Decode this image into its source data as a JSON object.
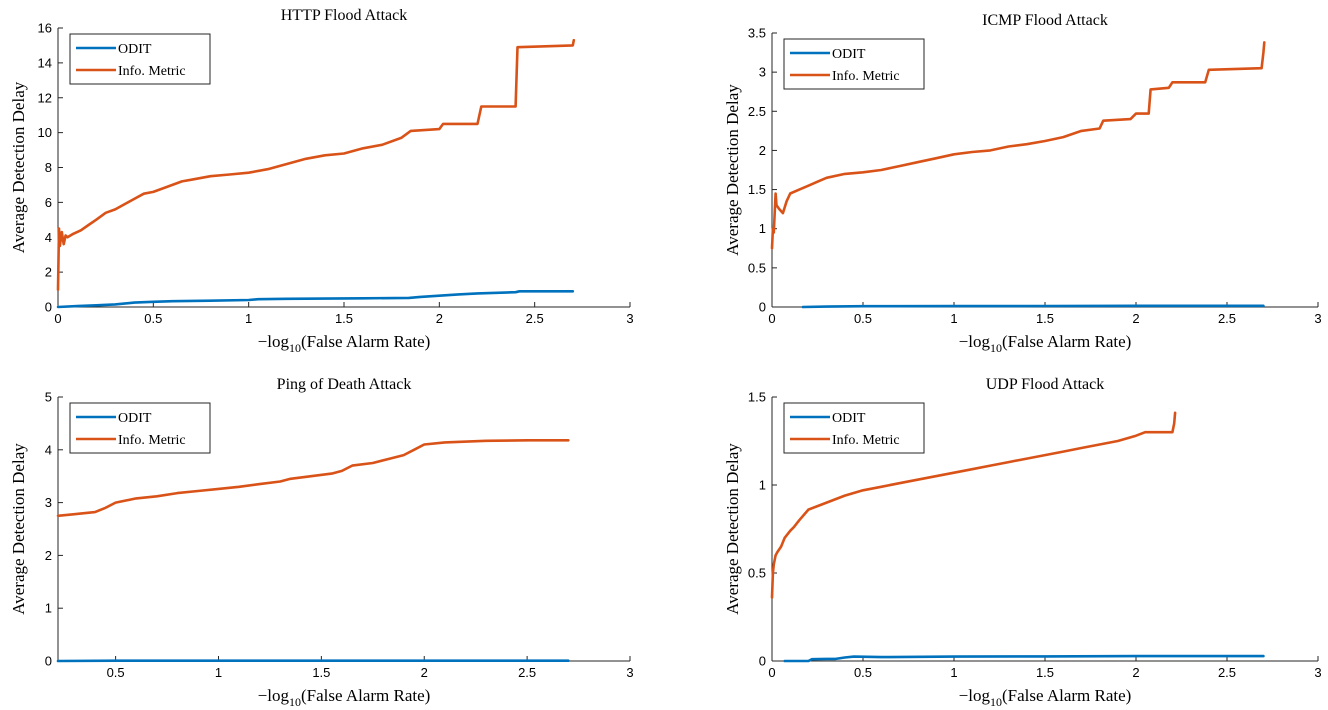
{
  "figure": {
    "layout": "2x2 grid of line charts"
  },
  "colors": {
    "odit": "#0072BD",
    "info": "#D95319",
    "axes": "#262626"
  },
  "chart_data": [
    {
      "type": "line",
      "title": "HTTP Flood Attack",
      "xlabel_prefix": "−log",
      "xlabel_sub": "10",
      "xlabel_suffix": "(False Alarm Rate)",
      "ylabel": "Average Detection Delay",
      "xlim": [
        0,
        3
      ],
      "ylim": [
        0,
        16
      ],
      "xticks": [
        0,
        0.5,
        1,
        1.5,
        2,
        2.5,
        3
      ],
      "xtick_labels": [
        "0",
        "0.5",
        "1",
        "1.5",
        "2",
        "2.5",
        "3"
      ],
      "yticks": [
        0,
        2,
        4,
        6,
        8,
        10,
        12,
        14,
        16
      ],
      "ytick_labels": [
        "0",
        "2",
        "4",
        "6",
        "8",
        "10",
        "12",
        "14",
        "16"
      ],
      "grid": false,
      "legend_position": "top-left",
      "series": [
        {
          "name": "ODIT",
          "color": "#0072BD",
          "x": [
            0,
            0.1,
            0.2,
            0.3,
            0.4,
            0.5,
            0.6,
            0.8,
            1.0,
            1.05,
            1.2,
            1.4,
            1.6,
            1.84,
            1.9,
            2.0,
            2.1,
            2.2,
            2.4,
            2.42,
            2.7
          ],
          "y": [
            0,
            0.05,
            0.1,
            0.15,
            0.25,
            0.3,
            0.33,
            0.36,
            0.4,
            0.45,
            0.47,
            0.48,
            0.5,
            0.52,
            0.58,
            0.65,
            0.72,
            0.78,
            0.85,
            0.9,
            0.9
          ]
        },
        {
          "name": "Info. Metric",
          "color": "#D95319",
          "x": [
            0,
            0.005,
            0.01,
            0.02,
            0.03,
            0.04,
            0.05,
            0.08,
            0.12,
            0.16,
            0.2,
            0.25,
            0.3,
            0.35,
            0.4,
            0.45,
            0.5,
            0.55,
            0.6,
            0.65,
            0.7,
            0.8,
            0.9,
            1.0,
            1.1,
            1.2,
            1.3,
            1.4,
            1.5,
            1.6,
            1.7,
            1.8,
            1.85,
            2.0,
            2.02,
            2.2,
            2.22,
            2.4,
            2.41,
            2.7,
            2.705
          ],
          "y": [
            1.0,
            4.5,
            3.5,
            4.3,
            3.6,
            4.1,
            4.0,
            4.2,
            4.4,
            4.7,
            5.0,
            5.4,
            5.6,
            5.9,
            6.2,
            6.5,
            6.6,
            6.8,
            7.0,
            7.2,
            7.3,
            7.5,
            7.6,
            7.7,
            7.9,
            8.2,
            8.5,
            8.7,
            8.8,
            9.1,
            9.3,
            9.7,
            10.1,
            10.2,
            10.5,
            10.5,
            11.5,
            11.5,
            14.9,
            15.0,
            15.3
          ]
        }
      ]
    },
    {
      "type": "line",
      "title": "ICMP Flood Attack",
      "xlabel_prefix": "−log",
      "xlabel_sub": "10",
      "xlabel_suffix": "(False Alarm Rate)",
      "ylabel": "Average Detection Delay",
      "xlim": [
        0,
        3
      ],
      "ylim": [
        0,
        3.5
      ],
      "xticks": [
        0,
        0.5,
        1,
        1.5,
        2,
        2.5,
        3
      ],
      "xtick_labels": [
        "0",
        "0.5",
        "1",
        "1.5",
        "2",
        "2.5",
        "3"
      ],
      "yticks": [
        0,
        0.5,
        1,
        1.5,
        2,
        2.5,
        3,
        3.5
      ],
      "ytick_labels": [
        "0",
        "0.5",
        "1",
        "1.5",
        "2",
        "2.5",
        "3",
        "3.5"
      ],
      "grid": false,
      "legend_position": "top-left",
      "series": [
        {
          "name": "ODIT",
          "color": "#0072BD",
          "x": [
            0.17,
            0.3,
            0.5,
            1.0,
            1.5,
            2.0,
            2.7
          ],
          "y": [
            0.0,
            0.005,
            0.01,
            0.012,
            0.013,
            0.015,
            0.015
          ]
        },
        {
          "name": "Info. Metric",
          "color": "#D95319",
          "x": [
            0,
            0.005,
            0.01,
            0.02,
            0.025,
            0.04,
            0.06,
            0.08,
            0.1,
            0.15,
            0.2,
            0.25,
            0.3,
            0.4,
            0.5,
            0.6,
            0.7,
            0.8,
            0.9,
            1.0,
            1.1,
            1.2,
            1.3,
            1.4,
            1.5,
            1.6,
            1.7,
            1.8,
            1.82,
            1.97,
            2.0,
            2.07,
            2.08,
            2.18,
            2.2,
            2.38,
            2.4,
            2.69,
            2.7,
            2.705
          ],
          "y": [
            0.75,
            1.0,
            0.95,
            1.45,
            1.3,
            1.25,
            1.2,
            1.35,
            1.45,
            1.5,
            1.55,
            1.6,
            1.65,
            1.7,
            1.72,
            1.75,
            1.8,
            1.85,
            1.9,
            1.95,
            1.98,
            2.0,
            2.05,
            2.08,
            2.12,
            2.17,
            2.25,
            2.28,
            2.38,
            2.4,
            2.47,
            2.47,
            2.78,
            2.8,
            2.87,
            2.87,
            3.03,
            3.05,
            3.25,
            3.38
          ]
        }
      ]
    },
    {
      "type": "line",
      "title": "Ping of Death Attack",
      "xlabel_prefix": "−log",
      "xlabel_sub": "10",
      "xlabel_suffix": "(False Alarm Rate)",
      "ylabel": "Average Detection Delay",
      "xlim": [
        0.22,
        3
      ],
      "ylim": [
        0,
        5
      ],
      "xticks": [
        0.5,
        1,
        1.5,
        2,
        2.5,
        3
      ],
      "xtick_labels": [
        "0.5",
        "1",
        "1.5",
        "2",
        "2.5",
        "3"
      ],
      "yticks": [
        0,
        1,
        2,
        3,
        4,
        5
      ],
      "ytick_labels": [
        "0",
        "1",
        "2",
        "3",
        "4",
        "5"
      ],
      "grid": false,
      "legend_position": "top-left",
      "series": [
        {
          "name": "ODIT",
          "color": "#0072BD",
          "x": [
            0.22,
            0.5,
            1.0,
            1.5,
            2.0,
            2.7
          ],
          "y": [
            0.0,
            0.005,
            0.005,
            0.005,
            0.005,
            0.005
          ]
        },
        {
          "name": "Info. Metric",
          "color": "#D95319",
          "x": [
            0.22,
            0.3,
            0.4,
            0.45,
            0.5,
            0.6,
            0.7,
            0.8,
            0.9,
            1.0,
            1.1,
            1.2,
            1.3,
            1.35,
            1.45,
            1.55,
            1.6,
            1.65,
            1.75,
            1.85,
            1.9,
            1.95,
            2.0,
            2.1,
            2.3,
            2.5,
            2.7
          ],
          "y": [
            2.75,
            2.78,
            2.82,
            2.9,
            3.0,
            3.08,
            3.12,
            3.18,
            3.22,
            3.26,
            3.3,
            3.35,
            3.4,
            3.45,
            3.5,
            3.55,
            3.6,
            3.7,
            3.75,
            3.85,
            3.9,
            4.0,
            4.1,
            4.14,
            4.17,
            4.18,
            4.18
          ]
        }
      ]
    },
    {
      "type": "line",
      "title": "UDP Flood Attack",
      "xlabel_prefix": "−log",
      "xlabel_sub": "10",
      "xlabel_suffix": "(False Alarm Rate)",
      "ylabel": "Average Detection Delay",
      "xlim": [
        0,
        3
      ],
      "ylim": [
        0,
        1.5
      ],
      "xticks": [
        0,
        0.5,
        1,
        1.5,
        2,
        2.5,
        3
      ],
      "xtick_labels": [
        "0",
        "0.5",
        "1",
        "1.5",
        "2",
        "2.5",
        "3"
      ],
      "yticks": [
        0,
        0.5,
        1,
        1.5
      ],
      "ytick_labels": [
        "0",
        "0.5",
        "1",
        "1.5"
      ],
      "grid": false,
      "legend_position": "top-left",
      "series": [
        {
          "name": "ODIT",
          "color": "#0072BD",
          "x": [
            0.07,
            0.2,
            0.22,
            0.3,
            0.35,
            0.4,
            0.45,
            0.6,
            1.0,
            1.5,
            2.0,
            2.7
          ],
          "y": [
            0.0,
            0.0,
            0.01,
            0.012,
            0.012,
            0.02,
            0.025,
            0.022,
            0.025,
            0.026,
            0.028,
            0.028
          ]
        },
        {
          "name": "Info. Metric",
          "color": "#D95319",
          "x": [
            0,
            0.005,
            0.01,
            0.02,
            0.03,
            0.05,
            0.07,
            0.1,
            0.12,
            0.15,
            0.2,
            0.25,
            0.3,
            0.35,
            0.4,
            0.5,
            0.6,
            0.7,
            0.8,
            0.9,
            1.0,
            1.1,
            1.2,
            1.3,
            1.4,
            1.5,
            1.6,
            1.7,
            1.8,
            1.9,
            2.0,
            2.05,
            2.2,
            2.21,
            2.215
          ],
          "y": [
            0.36,
            0.5,
            0.55,
            0.6,
            0.62,
            0.65,
            0.7,
            0.74,
            0.76,
            0.8,
            0.86,
            0.88,
            0.9,
            0.92,
            0.94,
            0.97,
            0.99,
            1.01,
            1.03,
            1.05,
            1.07,
            1.09,
            1.11,
            1.13,
            1.15,
            1.17,
            1.19,
            1.21,
            1.23,
            1.25,
            1.28,
            1.3,
            1.3,
            1.35,
            1.41
          ]
        }
      ]
    }
  ]
}
